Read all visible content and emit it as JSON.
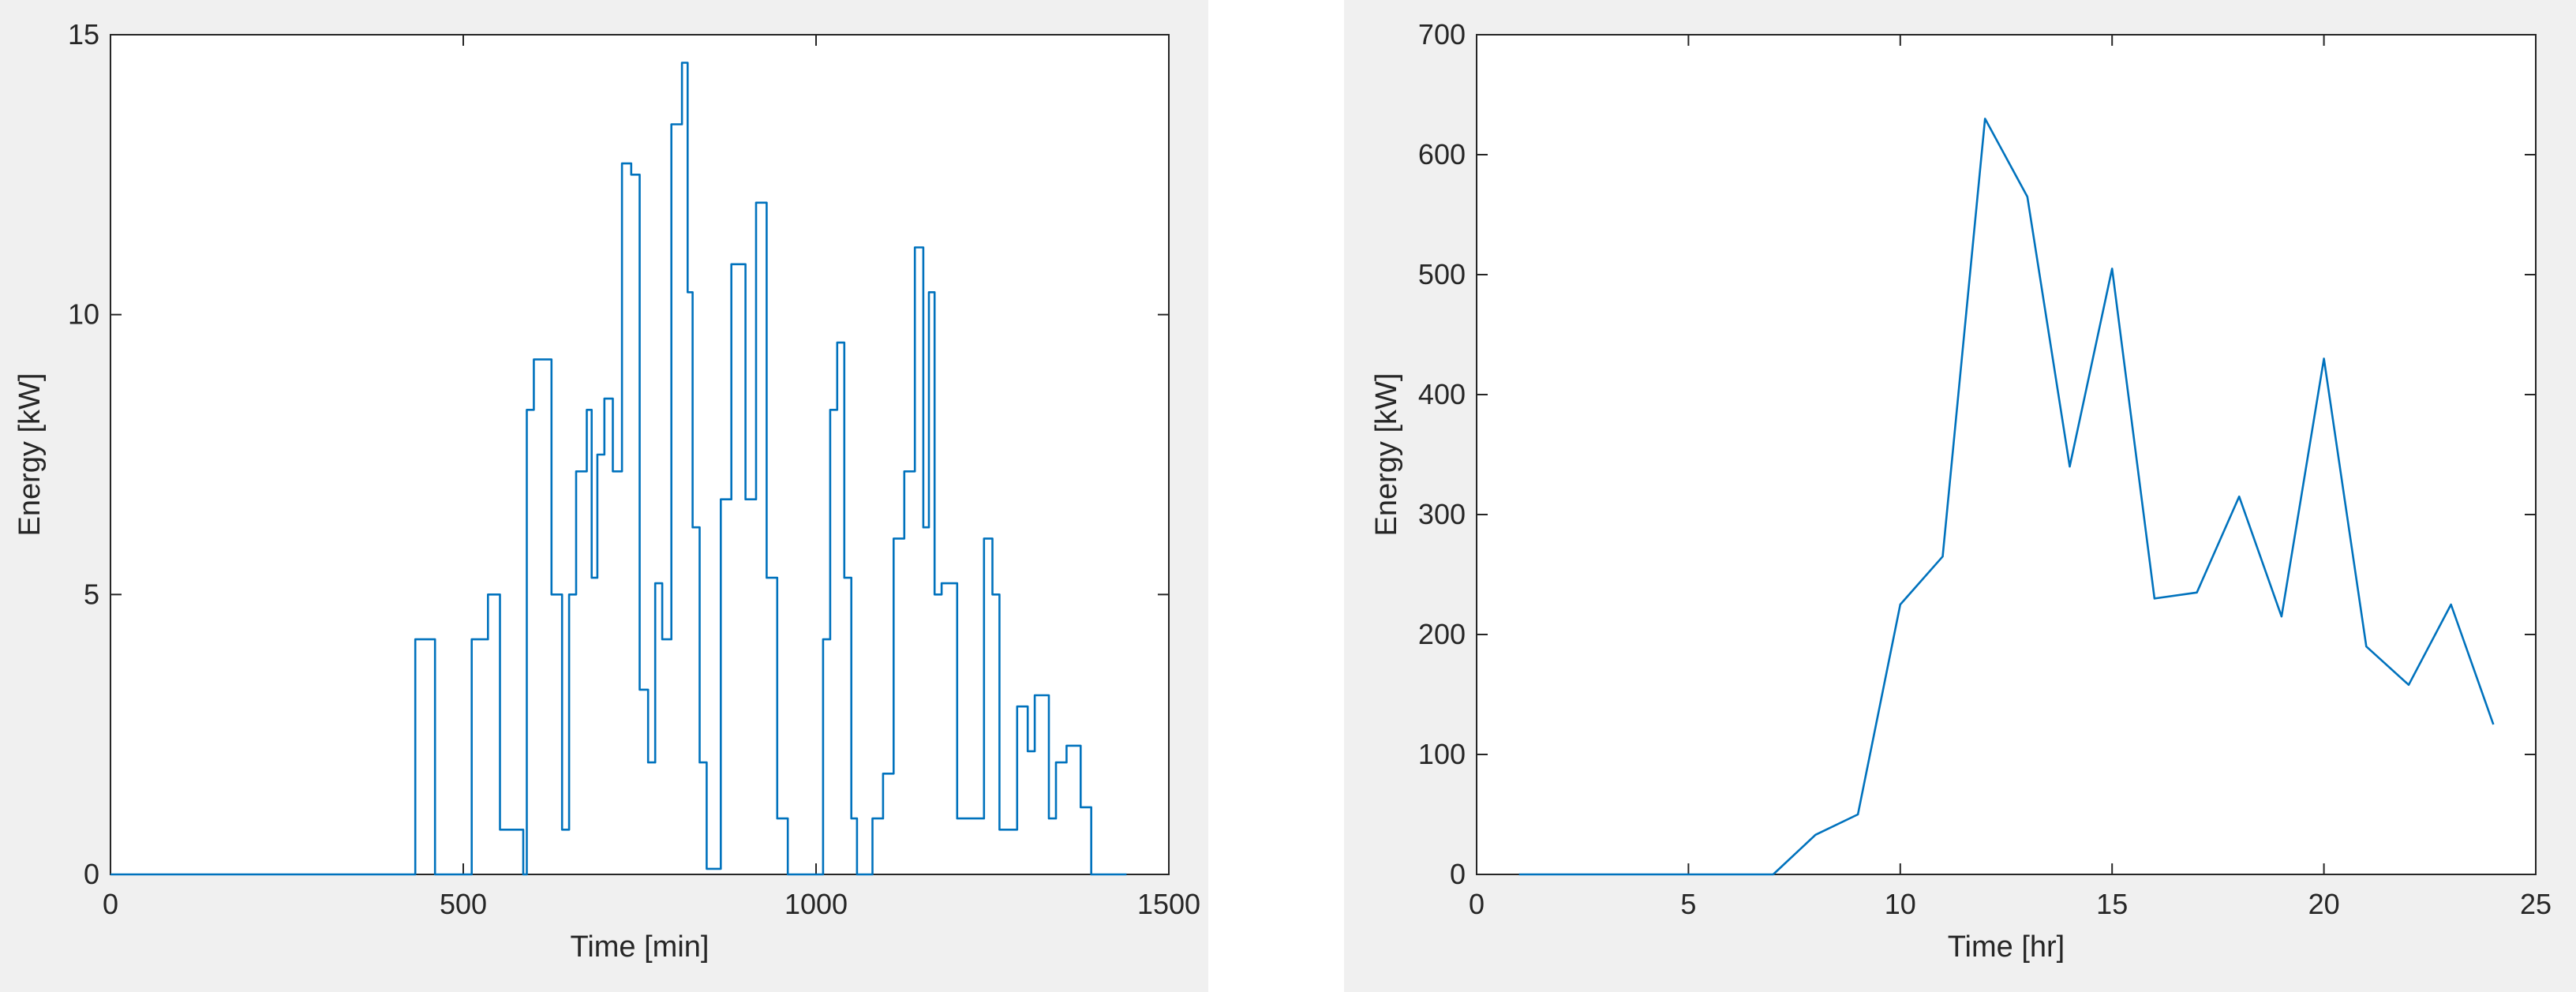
{
  "chart_data": [
    {
      "type": "line",
      "style": "step",
      "title": "",
      "xlabel": "Time [min]",
      "ylabel": "Energy [kW]",
      "xlim": [
        0,
        1500
      ],
      "ylim": [
        0,
        15
      ],
      "xticks": [
        0,
        500,
        1000,
        1500
      ],
      "yticks": [
        0,
        5,
        10,
        15
      ],
      "grid": false,
      "color": "#0072bd",
      "series": [
        {
          "x": [
            0,
            432,
            432,
            460,
            460,
            512,
            512,
            535,
            535,
            552,
            552,
            585,
            585,
            590,
            590,
            600,
            600,
            625,
            625,
            640,
            640,
            650,
            650,
            660,
            660,
            675,
            675,
            682,
            682,
            690,
            690,
            700,
            700,
            712,
            712,
            725,
            725,
            738,
            738,
            750,
            750,
            762,
            762,
            772,
            772,
            782,
            782,
            795,
            795,
            810,
            810,
            818,
            818,
            825,
            825,
            835,
            835,
            845,
            845,
            865,
            865,
            880,
            880,
            900,
            900,
            915,
            915,
            930,
            930,
            945,
            945,
            960,
            960,
            1010,
            1010,
            1020,
            1020,
            1030,
            1030,
            1040,
            1040,
            1050,
            1050,
            1058,
            1058,
            1080,
            1080,
            1095,
            1095,
            1110,
            1110,
            1125,
            1125,
            1140,
            1140,
            1152,
            1152,
            1160,
            1160,
            1168,
            1168,
            1178,
            1178,
            1200,
            1200,
            1238,
            1238,
            1250,
            1250,
            1260,
            1260,
            1285,
            1285,
            1300,
            1300,
            1310,
            1310,
            1330,
            1330,
            1340,
            1340,
            1355,
            1355,
            1375,
            1375,
            1390,
            1390,
            1440
          ],
          "y": [
            0,
            0,
            4.2,
            4.2,
            0,
            0,
            4.2,
            4.2,
            5.0,
            5.0,
            0.8,
            0.8,
            0,
            0,
            8.3,
            8.3,
            9.2,
            9.2,
            5.0,
            5.0,
            0.8,
            0.8,
            5.0,
            5.0,
            7.2,
            7.2,
            8.3,
            8.3,
            5.3,
            5.3,
            7.5,
            7.5,
            8.5,
            8.5,
            7.2,
            7.2,
            12.7,
            12.7,
            12.5,
            12.5,
            3.3,
            3.3,
            2.0,
            2.0,
            5.2,
            5.2,
            4.2,
            4.2,
            13.4,
            13.4,
            14.5,
            14.5,
            10.4,
            10.4,
            6.2,
            6.2,
            2.0,
            2.0,
            0.1,
            0.1,
            6.7,
            6.7,
            10.9,
            10.9,
            6.7,
            6.7,
            12.0,
            12.0,
            5.3,
            5.3,
            1.0,
            1.0,
            0,
            0,
            4.2,
            4.2,
            8.3,
            8.3,
            9.5,
            9.5,
            5.3,
            5.3,
            1.0,
            1.0,
            0,
            0,
            1.0,
            1.0,
            1.8,
            1.8,
            6.0,
            6.0,
            7.2,
            7.2,
            11.2,
            11.2,
            6.2,
            6.2,
            10.4,
            10.4,
            5.0,
            5.0,
            5.2,
            5.2,
            1.0,
            1.0,
            6.0,
            6.0,
            5.0,
            5.0,
            0.8,
            0.8,
            3.0,
            3.0,
            2.2,
            2.2,
            3.2,
            3.2,
            1.0,
            1.0,
            2.0,
            2.0,
            2.3,
            2.3,
            1.2,
            1.2,
            0,
            0
          ]
        }
      ]
    },
    {
      "type": "line",
      "title": "",
      "xlabel": "Time [hr]",
      "ylabel": "Energy [kW]",
      "xlim": [
        0,
        25
      ],
      "ylim": [
        0,
        700
      ],
      "xticks": [
        0,
        5,
        10,
        15,
        20,
        25
      ],
      "yticks": [
        0,
        100,
        200,
        300,
        400,
        500,
        600,
        700
      ],
      "grid": false,
      "color": "#0072bd",
      "series": [
        {
          "x": [
            1,
            2,
            3,
            4,
            5,
            6,
            7,
            8,
            9,
            10,
            11,
            12,
            13,
            14,
            15,
            16,
            17,
            18,
            19,
            20,
            21,
            22,
            23,
            24
          ],
          "y": [
            0,
            0,
            0,
            0,
            0,
            0,
            0,
            33,
            50,
            225,
            265,
            630,
            565,
            340,
            505,
            230,
            235,
            315,
            215,
            430,
            190,
            158,
            225,
            125
          ]
        }
      ]
    }
  ]
}
